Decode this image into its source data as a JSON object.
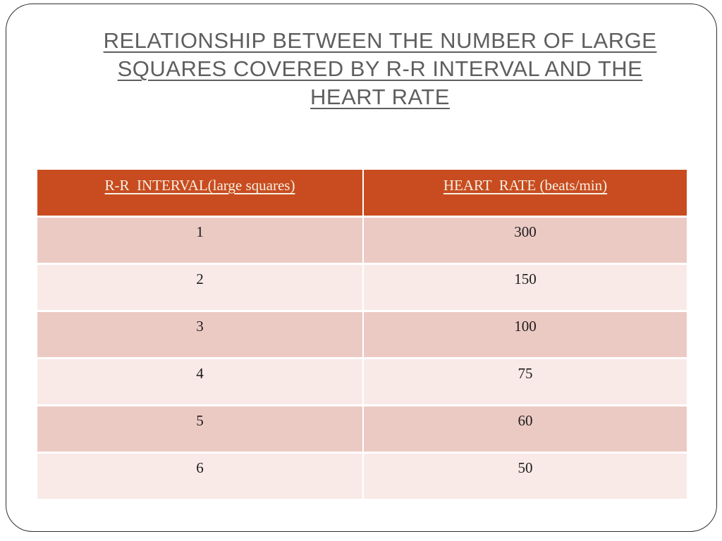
{
  "slide": {
    "title_lines": [
      "RELATIONSHIP BETWEEN THE NUMBER OF LARGE",
      "SQUARES COVERED BY R-R INTERVAL AND THE",
      "HEART RATE"
    ]
  },
  "table": {
    "columns": [
      "R-R  INTERVAL(large squares)",
      "HEART  RATE (beats/min)"
    ],
    "rows": [
      [
        "1",
        "300"
      ],
      [
        "2",
        "150"
      ],
      [
        "3",
        "100"
      ],
      [
        "4",
        "75"
      ],
      [
        "5",
        "60"
      ],
      [
        "6",
        "50"
      ]
    ]
  },
  "colors": {
    "header_bg": "#c84c1f",
    "header_text": "#f6efe3",
    "row_odd_bg": "#eccac4",
    "row_even_bg": "#f9eae7",
    "body_text": "#1c1c1c",
    "title_text": "#5e5e5e",
    "slide_border": "#2e2e2e",
    "slide_bg": "#ffffff"
  }
}
